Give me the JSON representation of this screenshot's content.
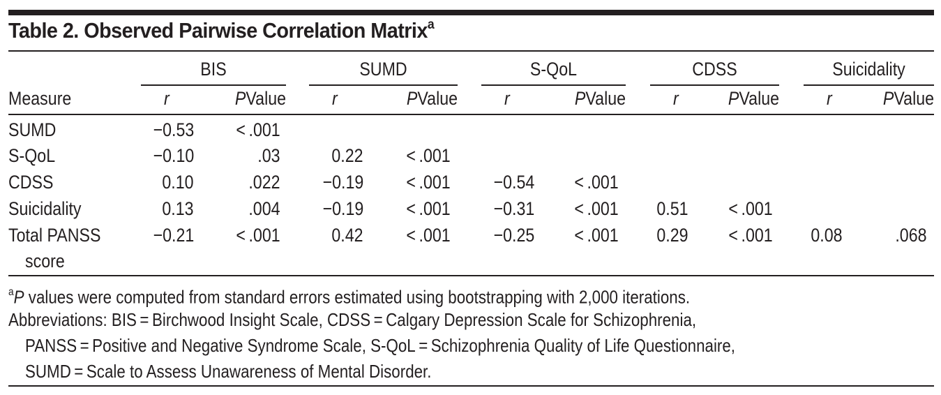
{
  "title": "Table 2. Observed Pairwise Correlation Matrix",
  "title_footnote_mark": "a",
  "header": {
    "stub": "Measure",
    "groups": [
      "BIS",
      "SUMD",
      "S-QoL",
      "CDSS",
      "Suicidality"
    ],
    "sub_r": "r",
    "sub_p_italic": "P",
    "sub_p_rest": "Value"
  },
  "rows": [
    {
      "measure": "SUMD",
      "cells": [
        "−0.53",
        "< .001",
        "",
        "",
        "",
        "",
        "",
        "",
        "",
        ""
      ]
    },
    {
      "measure": "S-QoL",
      "cells": [
        "−0.10",
        ".03",
        "0.22",
        "< .001",
        "",
        "",
        "",
        "",
        "",
        ""
      ]
    },
    {
      "measure": "CDSS",
      "cells": [
        "0.10",
        ".022",
        "−0.19",
        "< .001",
        "−0.54",
        "< .001",
        "",
        "",
        "",
        ""
      ]
    },
    {
      "measure": "Suicidality",
      "cells": [
        "0.13",
        ".004",
        "−0.19",
        "< .001",
        "−0.31",
        "< .001",
        "0.51",
        "< .001",
        "",
        ""
      ]
    },
    {
      "measure": "Total PANSS",
      "measure_cont": "score",
      "cells": [
        "−0.21",
        "< .001",
        "0.42",
        "< .001",
        "−0.25",
        "< .001",
        "0.29",
        "< .001",
        "0.08",
        ".068"
      ]
    }
  ],
  "footnotes": {
    "a_mark": "a",
    "a_italic": "P",
    "a_text": " values were computed from standard errors estimated using bootstrapping with 2,000 iterations.",
    "abbrev_line1": "Abbreviations: BIS = Birchwood Insight Scale, CDSS = Calgary Depression Scale for Schizophrenia,",
    "abbrev_line2": "PANSS = Positive and Negative Syndrome Scale, S-QoL = Schizophrenia Quality of Life Questionnaire,",
    "abbrev_line3": "SUMD = Scale to Assess Unawareness of Mental Disorder."
  },
  "colors": {
    "text": "#231f20",
    "background": "#ffffff"
  }
}
